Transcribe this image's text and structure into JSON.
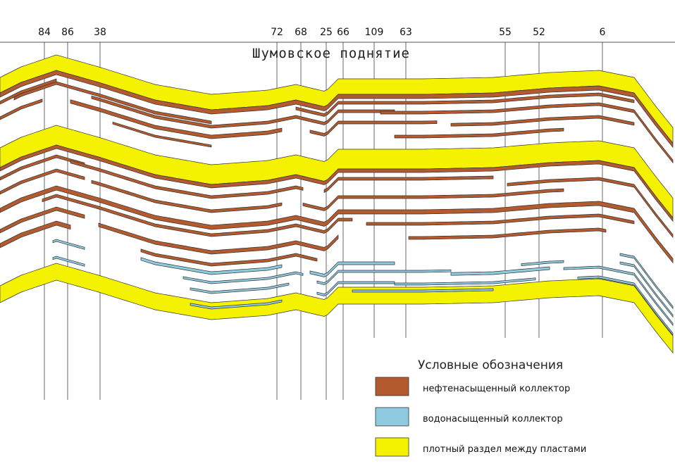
{
  "title": "Шумовское поднятие",
  "wells": [
    "84",
    "86",
    "38",
    "72",
    "68",
    "25",
    "66",
    "109",
    "63",
    "55",
    "52",
    "6"
  ],
  "legend": {
    "title": "Условные обозначения",
    "items": [
      {
        "label": "нефтенасыщенный коллектор",
        "color": "#b35a2e"
      },
      {
        "label": "водонасыщенный коллектор",
        "color": "#8fcbe0"
      },
      {
        "label": "плотный раздел между пластами",
        "color": "#f5f200"
      }
    ]
  },
  "colors": {
    "oil": "#b35a2e",
    "water": "#8fcbe0",
    "seal": "#f5f200",
    "outline": "#333333"
  }
}
